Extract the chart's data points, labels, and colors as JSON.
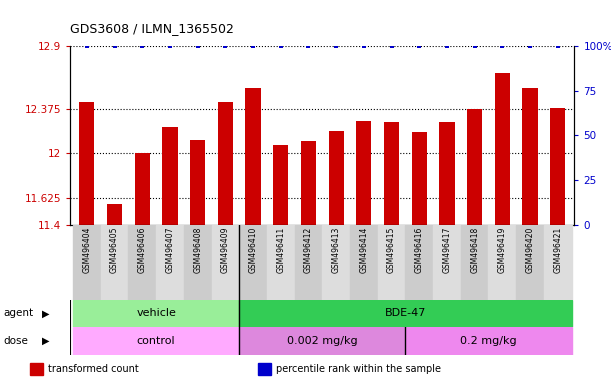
{
  "title": "GDS3608 / ILMN_1365502",
  "samples": [
    "GSM496404",
    "GSM496405",
    "GSM496406",
    "GSM496407",
    "GSM496408",
    "GSM496409",
    "GSM496410",
    "GSM496411",
    "GSM496412",
    "GSM496413",
    "GSM496414",
    "GSM496415",
    "GSM496416",
    "GSM496417",
    "GSM496418",
    "GSM496419",
    "GSM496420",
    "GSM496421"
  ],
  "bar_values": [
    12.43,
    11.57,
    12.0,
    12.22,
    12.11,
    12.43,
    12.55,
    12.07,
    12.1,
    12.19,
    12.27,
    12.26,
    12.18,
    12.26,
    12.37,
    12.67,
    12.55,
    12.38
  ],
  "percentile_values": [
    100,
    100,
    100,
    100,
    100,
    100,
    100,
    100,
    100,
    100,
    100,
    100,
    100,
    100,
    100,
    100,
    100,
    100
  ],
  "ylim_left": [
    11.4,
    12.9
  ],
  "ylim_right": [
    0,
    100
  ],
  "yticks_left": [
    11.4,
    11.625,
    12.0,
    12.375,
    12.9
  ],
  "yticks_right": [
    0,
    25,
    50,
    75,
    100
  ],
  "ytick_labels_left": [
    "11.4",
    "11.625",
    "12",
    "12.375",
    "12.9"
  ],
  "ytick_labels_right": [
    "0",
    "25",
    "50",
    "75",
    "100%"
  ],
  "bar_color": "#cc0000",
  "dot_color": "#0000cc",
  "axis_label_color_left": "#cc0000",
  "axis_label_color_right": "#0000cc",
  "agent_groups": [
    {
      "label": "vehicle",
      "start": 0,
      "end": 6,
      "color": "#99ee99"
    },
    {
      "label": "BDE-47",
      "start": 6,
      "end": 18,
      "color": "#33cc55"
    }
  ],
  "dose_groups": [
    {
      "label": "control",
      "start": 0,
      "end": 6,
      "color": "#ffaaff"
    },
    {
      "label": "0.002 mg/kg",
      "start": 6,
      "end": 12,
      "color": "#dd88dd"
    },
    {
      "label": "0.2 mg/kg",
      "start": 12,
      "end": 18,
      "color": "#ee88ee"
    }
  ],
  "legend_items": [
    {
      "color": "#cc0000",
      "label": "transformed count"
    },
    {
      "color": "#0000cc",
      "label": "percentile rank within the sample"
    }
  ],
  "bg_color": "#ffffff"
}
